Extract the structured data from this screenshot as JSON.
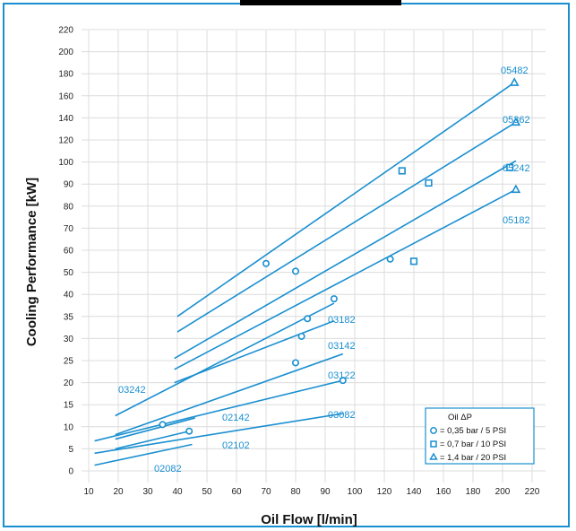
{
  "chart_data": {
    "type": "line",
    "title": "",
    "xlabel": "Oil Flow [l/min]",
    "ylabel": "Cooling Performance [kW]",
    "xlim": [
      10,
      220
    ],
    "xticks": [
      10,
      20,
      30,
      40,
      50,
      60,
      70,
      80,
      90,
      100,
      120,
      140,
      160,
      180,
      200,
      220
    ],
    "yticks": [
      0,
      5,
      10,
      15,
      20,
      25,
      30,
      35,
      40,
      50,
      60,
      70,
      80,
      90,
      100,
      120,
      140,
      160,
      180,
      200,
      220
    ],
    "grid": true,
    "accent_color": "#1a8fd0",
    "legend": {
      "title": "Oil ΔP",
      "placement": "bottom-right",
      "entries": [
        {
          "marker": "circle",
          "label": "= 0,35 bar / 5 PSI"
        },
        {
          "marker": "square",
          "label": "= 0,7 bar / 10 PSI"
        },
        {
          "marker": "triangle",
          "label": "= 1,4 bar / 20 PSI"
        }
      ]
    },
    "series": [
      {
        "name": "02082",
        "points": [
          {
            "x": 12,
            "y": 1.3
          },
          {
            "x": 45,
            "y": 6
          }
        ],
        "markers": []
      },
      {
        "name": "02102",
        "points": [
          {
            "x": 19,
            "y": 5
          },
          {
            "x": 44,
            "y": 9
          }
        ],
        "markers": [
          {
            "x": 44,
            "y": 9,
            "shape": "circle"
          }
        ]
      },
      {
        "name": "02142",
        "points": [
          {
            "x": 19,
            "y": 7.2
          },
          {
            "x": 46,
            "y": 12
          }
        ],
        "markers": []
      },
      {
        "name": "03082",
        "points": [
          {
            "x": 12,
            "y": 4
          },
          {
            "x": 96,
            "y": 13
          }
        ],
        "markers": [
          {
            "x": 35,
            "y": 10.5,
            "shape": "circle"
          }
        ]
      },
      {
        "name": "03122",
        "points": [
          {
            "x": 12,
            "y": 6.8
          },
          {
            "x": 96,
            "y": 20.5
          }
        ],
        "markers": [
          {
            "x": 96,
            "y": 20.5,
            "shape": "circle"
          }
        ]
      },
      {
        "name": "03142",
        "points": [
          {
            "x": 19,
            "y": 8.2
          },
          {
            "x": 96,
            "y": 26.5
          }
        ],
        "markers": [
          {
            "x": 80,
            "y": 24.5,
            "shape": "circle"
          }
        ]
      },
      {
        "name": "03182",
        "points": [
          {
            "x": 39,
            "y": 20
          },
          {
            "x": 93,
            "y": 34
          }
        ],
        "markers": [
          {
            "x": 82,
            "y": 30.5,
            "shape": "circle"
          },
          {
            "x": 84,
            "y": 34.5,
            "shape": "circle"
          },
          {
            "x": 93,
            "y": 39,
            "shape": "circle"
          }
        ]
      },
      {
        "name": "03242",
        "points": [
          {
            "x": 19,
            "y": 12.5
          },
          {
            "x": 93,
            "y": 38
          }
        ],
        "markers": []
      },
      {
        "name": "05182",
        "points": [
          {
            "x": 39,
            "y": 23
          },
          {
            "x": 209,
            "y": 87.5
          }
        ],
        "markers": [
          {
            "x": 140,
            "y": 55,
            "shape": "square"
          },
          {
            "x": 209,
            "y": 87.5,
            "shape": "triangle"
          }
        ]
      },
      {
        "name": "05242",
        "points": [
          {
            "x": 39,
            "y": 25.5
          },
          {
            "x": 209,
            "y": 101
          }
        ],
        "markers": [
          {
            "x": 124,
            "y": 56,
            "shape": "circle"
          },
          {
            "x": 205,
            "y": 97.5,
            "shape": "square"
          }
        ]
      },
      {
        "name": "05362",
        "points": [
          {
            "x": 40,
            "y": 31.5
          },
          {
            "x": 209,
            "y": 136
          }
        ],
        "markers": [
          {
            "x": 80,
            "y": 50.5,
            "shape": "circle"
          },
          {
            "x": 150,
            "y": 90.5,
            "shape": "square"
          },
          {
            "x": 209,
            "y": 136,
            "shape": "triangle"
          }
        ]
      },
      {
        "name": "05482",
        "points": [
          {
            "x": 40,
            "y": 35
          },
          {
            "x": 208,
            "y": 172
          }
        ],
        "markers": [
          {
            "x": 70,
            "y": 54,
            "shape": "circle"
          },
          {
            "x": 132,
            "y": 96,
            "shape": "square"
          },
          {
            "x": 208,
            "y": 172,
            "shape": "triangle"
          }
        ]
      }
    ]
  }
}
